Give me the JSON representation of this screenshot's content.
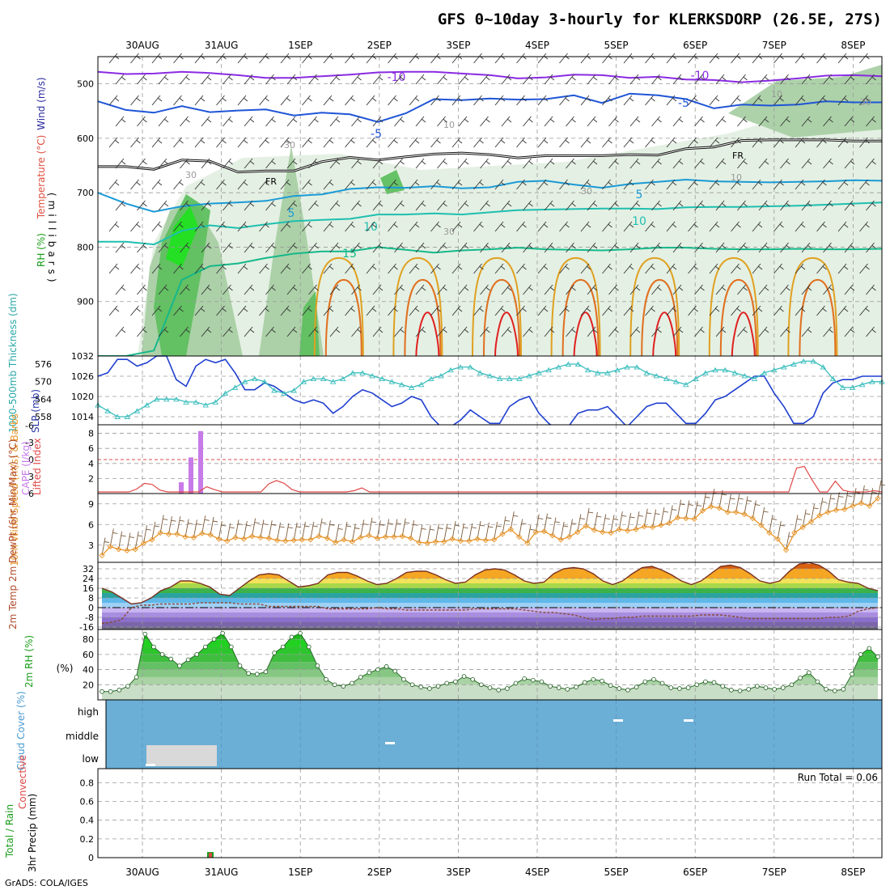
{
  "title": "GFS 0~10day 3-hourly for KLERKSDORP (26.5E, 27S)",
  "credit": "GrADS: COLA/IGES",
  "dates": [
    "30AUG",
    "31AUG",
    "1SEP",
    "2SEP",
    "3SEP",
    "4SEP",
    "5SEP",
    "6SEP",
    "7SEP",
    "8SEP"
  ],
  "colors": {
    "rh_light": "#e3efe1",
    "rh_mid": "#a9cfa4",
    "rh_dark": "#5fbf5f",
    "rh_bright": "#21e021",
    "sky": "#6baed6",
    "cloud": "#d9d9d9",
    "slp": "#1f3fcf",
    "thick": "#3bbdbd",
    "cape": "#c87ae8",
    "li": "#e04848",
    "wind10": "#e8962a",
    "barb": "#7a5a3a"
  },
  "chart_data": [
    {
      "type": "contour",
      "panel": "upper-air",
      "ylabel": "Wind (m/s)  Temperature (°C)  RH (%)  (millibars)",
      "ylabel_parts": [
        "RH (%)",
        "Temperature (°C)",
        "Wind (m/s)"
      ],
      "yaxis_label": "(millibars)",
      "yticks": [
        500,
        600,
        700,
        800,
        900
      ],
      "ylim": [
        1000,
        450
      ],
      "freezing_label": "FR",
      "contour_labels": [
        "-10",
        "-10",
        "-5",
        "-5",
        "5",
        "5",
        "10",
        "10",
        "15",
        "FR",
        "FR",
        "10",
        "10",
        "10",
        "30",
        "30",
        "30",
        "30",
        "30"
      ],
      "isotherms": [
        {
          "temp": -10,
          "color": "#8a2be2",
          "p": [
            478,
            482,
            481,
            478,
            480,
            484,
            489,
            489,
            486,
            483,
            479,
            478,
            478,
            481,
            484,
            490,
            488,
            483,
            484,
            489,
            487,
            492,
            493,
            497,
            494,
            490,
            485,
            484,
            486
          ]
        },
        {
          "temp": -5,
          "color": "#1f55d6",
          "p": [
            532,
            548,
            553,
            541,
            552,
            549,
            547,
            558,
            553,
            556,
            570,
            554,
            528,
            530,
            527,
            529,
            528,
            521,
            535,
            518,
            521,
            528,
            545,
            538,
            540,
            538,
            532,
            534,
            534
          ]
        },
        {
          "temp": 0,
          "color": "#111111",
          "p": [
            652,
            652,
            657,
            640,
            642,
            662,
            660,
            660,
            643,
            635,
            640,
            634,
            629,
            627,
            630,
            636,
            632,
            632,
            632,
            630,
            631,
            619,
            616,
            604,
            603,
            603,
            603,
            605,
            605
          ]
        },
        {
          "temp": 5,
          "color": "#1a9ad6",
          "p": [
            700,
            720,
            735,
            725,
            720,
            718,
            715,
            706,
            703,
            693,
            690,
            691,
            688,
            692,
            690,
            680,
            678,
            685,
            691,
            684,
            680,
            676,
            679,
            680,
            681,
            680,
            679,
            677,
            678
          ]
        },
        {
          "temp": 10,
          "color": "#1ebfb0",
          "p": [
            790,
            790,
            795,
            770,
            760,
            765,
            758,
            752,
            750,
            748,
            740,
            740,
            738,
            740,
            736,
            732,
            731,
            730,
            729,
            729,
            730,
            727,
            726,
            726,
            725,
            724,
            722,
            720,
            718
          ]
        },
        {
          "temp": 15,
          "color": "#15b88a",
          "p": [
            1000,
            1000,
            990,
            860,
            835,
            830,
            820,
            812,
            808,
            808,
            800,
            805,
            810,
            806,
            804,
            801,
            804,
            805,
            806,
            804,
            801,
            801,
            803,
            804,
            804,
            803,
            804,
            804,
            803
          ]
        }
      ],
      "warm_cells": [
        {
          "temp": 20,
          "color": "#e0a020",
          "x": [
            "2SEP",
            "3SEP",
            "4SEP",
            "5SEP",
            "6SEP",
            "7SEP",
            "8SEP"
          ],
          "top_p": 820
        },
        {
          "temp": 25,
          "color": "#e07020",
          "x": [
            "2SEP",
            "3SEP",
            "4SEP",
            "5SEP",
            "6SEP",
            "7SEP",
            "8SEP"
          ],
          "top_p": 860
        },
        {
          "temp": 30,
          "color": "#e02020",
          "x": [
            "3SEP",
            "4SEP",
            "5SEP",
            "6SEP",
            "7SEP"
          ],
          "top_p": 920
        }
      ]
    },
    {
      "type": "line",
      "panel": "slp-thickness",
      "ylabel_left": "1000-500mb Thickness (dm)",
      "ylabel_right": "SLP (mb)",
      "yticks_left": [
        558,
        564,
        570,
        576
      ],
      "yticks_right": [
        1014,
        1020,
        1026,
        1032
      ],
      "series": [
        {
          "name": "SLP (mb)",
          "values": [
            1026,
            1027,
            1031,
            1031,
            1029,
            1030,
            1032,
            1032,
            1025,
            1023,
            1029,
            1031,
            1030,
            1031,
            1027,
            1022,
            1022,
            1024,
            1023,
            1021,
            1019,
            1018,
            1019,
            1018,
            1015,
            1017,
            1020,
            1022,
            1021,
            1019,
            1017,
            1018,
            1020,
            1019,
            1014,
            1011,
            1011,
            1013,
            1016,
            1014,
            1012,
            1012,
            1017,
            1019,
            1020,
            1015,
            1012,
            1010,
            1011,
            1015,
            1016,
            1016,
            1017,
            1014,
            1011,
            1014,
            1017,
            1018,
            1018,
            1015,
            1012,
            1012,
            1015,
            1019,
            1020,
            1022,
            1024,
            1026,
            1026,
            1021,
            1017,
            1012,
            1012,
            1014,
            1021,
            1024,
            1025,
            1025,
            1026,
            1026,
            1026
          ]
        },
        {
          "name": "Thickness (dm)",
          "values": [
            562,
            560,
            558,
            558,
            560,
            562,
            564,
            564,
            564,
            563,
            563,
            562,
            563,
            566,
            568,
            570,
            571,
            570,
            567,
            566,
            567,
            570,
            571,
            571,
            570,
            571,
            573,
            573,
            572,
            571,
            570,
            569,
            568,
            569,
            571,
            572,
            574,
            575,
            575,
            573,
            572,
            571,
            571,
            571,
            572,
            573,
            574,
            575,
            576,
            576,
            574,
            573,
            573,
            574,
            575,
            575,
            573,
            572,
            571,
            570,
            569,
            571,
            573,
            574,
            574,
            573,
            572,
            571,
            573,
            574,
            575,
            576,
            577,
            577,
            575,
            571,
            568,
            568,
            569,
            570,
            570
          ]
        }
      ]
    },
    {
      "type": "bar+line",
      "panel": "cape-li",
      "ylabel_left": "Lifted Index",
      "ylabel_right": "CAPE (J/kg)",
      "yticks_left": [
        6,
        3,
        0,
        -3,
        -6
      ],
      "yticks_right": [
        2,
        4,
        6,
        8
      ],
      "cape": {
        "x": [
          "30AUG 12Z",
          "30AUG 15Z",
          "30AUG 18Z"
        ],
        "values": [
          1.5,
          4.8,
          8.3
        ]
      },
      "lifted_index": {
        "values": [
          6,
          6,
          6,
          6,
          6,
          5.2,
          4.2,
          4.4,
          5.4,
          6,
          6,
          6,
          6,
          5.7,
          4.8,
          5.3,
          6,
          6,
          6,
          6,
          6,
          6,
          4.3,
          3.7,
          4.2,
          5.3,
          6,
          6,
          6,
          6,
          6,
          6,
          6,
          5.5,
          5.0,
          6,
          6,
          6,
          6,
          6,
          6,
          6,
          6,
          6,
          6,
          6,
          6,
          6,
          6,
          6,
          6,
          6,
          6,
          6,
          6,
          6,
          6,
          6,
          6,
          6,
          5.8,
          6,
          6,
          6,
          6,
          6,
          6,
          6,
          6,
          6,
          6,
          6,
          6,
          6,
          6,
          6,
          6,
          6,
          6,
          6,
          6,
          6,
          6,
          6,
          6,
          6,
          6,
          6,
          6,
          6,
          1.5,
          1.2,
          3.6,
          6,
          6,
          3.8,
          5.4,
          6,
          6,
          6,
          5.5,
          6
        ]
      }
    },
    {
      "type": "line",
      "panel": "wind10m",
      "ylabel": "10m Wind Speed (m/s) & Barbs",
      "yticks": [
        3,
        6,
        9
      ],
      "series": [
        {
          "name": "10m wind speed (m/s)",
          "values": [
            1.5,
            2.8,
            2.4,
            2.2,
            2.4,
            3.3,
            3.8,
            4.8,
            4.6,
            4.6,
            4.2,
            4.1,
            4.7,
            4.5,
            3.9,
            3.6,
            4.1,
            3.9,
            4.3,
            4.1,
            4.0,
            3.7,
            3.6,
            3.7,
            3.8,
            3.8,
            4.3,
            4.0,
            3.4,
            3.8,
            3.5,
            4.1,
            4.4,
            4.0,
            4.2,
            4.2,
            4.3,
            4.0,
            3.4,
            3.3,
            3.5,
            3.5,
            3.9,
            3.6,
            3.6,
            3.9,
            3.7,
            3.8,
            4.6,
            5.3,
            4.2,
            3.3,
            4.9,
            5.0,
            4.4,
            3.8,
            4.2,
            4.9,
            5.8,
            5.2,
            4.9,
            4.8,
            5.3,
            5.1,
            5.3,
            5.7,
            5.6,
            5.9,
            6.2,
            7.0,
            6.9,
            6.8,
            8.0,
            8.6,
            8.4,
            7.8,
            7.8,
            7.5,
            6.9,
            5.9,
            4.8,
            3.9,
            2.3,
            4.8,
            5.6,
            6.4,
            7.3,
            7.8,
            8.1,
            8.2,
            8.7,
            9.1,
            8.7,
            9.8
          ]
        }
      ]
    },
    {
      "type": "area",
      "panel": "temp2m",
      "ylabel": "2m Temp 2m DewPt (6hr Min/Max) (°C)",
      "ylabel_unit": "(°C)",
      "yticks": [
        -16,
        -8,
        0,
        8,
        16,
        24,
        32
      ],
      "series": [
        {
          "name": "2m Temp",
          "values": [
            16,
            13,
            8,
            3,
            4,
            8,
            14,
            17,
            22,
            22,
            20,
            17,
            11,
            10,
            16,
            22,
            27,
            28,
            27,
            22,
            17,
            18,
            20,
            27,
            29,
            29,
            26,
            22,
            19,
            20,
            24,
            29,
            30,
            30,
            27,
            23,
            20,
            21,
            27,
            31,
            32,
            31,
            27,
            22,
            20,
            21,
            28,
            32,
            33,
            32,
            28,
            22,
            19,
            22,
            28,
            33,
            34,
            31,
            27,
            22,
            19,
            22,
            28,
            34,
            35,
            33,
            28,
            22,
            20,
            22,
            30,
            36,
            37,
            35,
            30,
            23,
            21,
            20,
            16,
            14
          ]
        },
        {
          "name": "2m DewPt",
          "values": [
            -13,
            -12,
            -10,
            0,
            2,
            2,
            3,
            3,
            3,
            3,
            4,
            4,
            4,
            4,
            3,
            3,
            3,
            1,
            1,
            1,
            1,
            1,
            1,
            -1,
            -1,
            -1,
            -1,
            -1,
            0,
            -1,
            -1,
            -2,
            -2,
            -2,
            -2,
            -2,
            -2,
            -2,
            -1,
            -1,
            -1,
            -1,
            -1,
            -2,
            -3,
            -4,
            -4,
            -5,
            -6,
            -8,
            -10,
            -9,
            -9,
            -8,
            -8,
            -7,
            -7,
            -7,
            -7,
            -7,
            -7,
            -6,
            -6,
            -6,
            -7,
            -8,
            -9,
            -9,
            -9,
            -9,
            -9,
            -9,
            -9,
            -9,
            -8,
            -8,
            -7,
            -3,
            -1,
            0
          ]
        }
      ]
    },
    {
      "type": "area",
      "panel": "rh2m",
      "ylabel": "2m RH (%)",
      "yticks": [
        20,
        40,
        60,
        80
      ],
      "series": [
        {
          "name": "2m RH (%)",
          "values": [
            11,
            11,
            13,
            18,
            30,
            87,
            70,
            60,
            54,
            45,
            53,
            60,
            70,
            80,
            88,
            70,
            45,
            35,
            34,
            37,
            62,
            70,
            83,
            88,
            70,
            45,
            27,
            20,
            18,
            22,
            30,
            36,
            40,
            44,
            38,
            27,
            20,
            17,
            15,
            18,
            22,
            24,
            31,
            27,
            20,
            16,
            13,
            15,
            22,
            28,
            26,
            24,
            18,
            16,
            14,
            17,
            23,
            27,
            25,
            19,
            15,
            13,
            17,
            24,
            27,
            22,
            16,
            15,
            16,
            20,
            24,
            23,
            18,
            13,
            12,
            14,
            18,
            16,
            14,
            16,
            20,
            29,
            36,
            24,
            14,
            12,
            14,
            34,
            60,
            68,
            57
          ]
        }
      ]
    },
    {
      "type": "table",
      "panel": "cloud-cover",
      "ylabel": "Cloud Cover (%)",
      "levels": [
        "high",
        "middle",
        "low"
      ],
      "segments": [
        {
          "level": "low",
          "x": [
            "30AUG 06Z",
            "31AUG 00Z"
          ],
          "value": 100
        },
        {
          "level": "middle",
          "x": [
            "2SEP 06Z"
          ],
          "value": 50
        },
        {
          "level": "high",
          "x": [
            "4SEP 21Z"
          ],
          "value": 50
        },
        {
          "level": "high",
          "x": [
            "5SEP 21Z"
          ],
          "value": 50
        }
      ]
    },
    {
      "type": "bar",
      "panel": "precip",
      "ylabel": "Total / Rain / Convective 3hr Precip (mm)",
      "ylabel_parts": [
        "Total / Rain",
        "Convective"
      ],
      "ylabel_axis": "3hr Precip (mm)",
      "yticks": [
        0,
        0.2,
        0.4,
        0.6,
        0.8
      ],
      "ylim": [
        0,
        0.95
      ],
      "run_total_label": "Run Total = 0.06",
      "bars": [
        {
          "x": "30AUG 21Z",
          "total": 0.06,
          "rain": 0.05,
          "convective": 0.02
        }
      ]
    }
  ]
}
